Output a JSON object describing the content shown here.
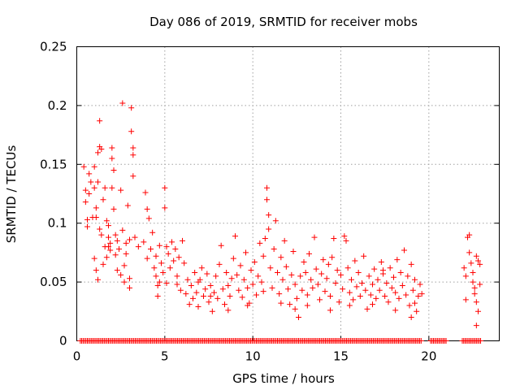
{
  "chart_data": {
    "type": "scatter",
    "title": "Day 086 of 2019, SRMTID for receiver mobs",
    "xlabel": "GPS time / hours",
    "ylabel": "SRMTID / TECUs",
    "xlim": [
      0,
      24
    ],
    "ylim": [
      0,
      0.25
    ],
    "x_ticks": [
      0,
      5,
      10,
      15,
      20
    ],
    "x_tick_labels": [
      "0",
      "5",
      "10",
      "15",
      "20"
    ],
    "y_ticks": [
      0,
      0.05,
      0.1,
      0.15,
      0.2,
      0.25
    ],
    "y_tick_labels": [
      "0",
      "0.05",
      "0.1",
      "0.15",
      "0.2",
      "0.25"
    ],
    "grid": true,
    "marker": "+",
    "color": "#ff0000",
    "series": [
      {
        "name": "SRMTID",
        "points": [
          [
            0.4,
            0.148
          ],
          [
            0.5,
            0.128
          ],
          [
            0.5,
            0.118
          ],
          [
            0.6,
            0.103
          ],
          [
            0.6,
            0.097
          ],
          [
            0.7,
            0.125
          ],
          [
            0.7,
            0.142
          ],
          [
            0.8,
            0.135
          ],
          [
            1.0,
            0.148
          ],
          [
            1.0,
            0.13
          ],
          [
            1.1,
            0.113
          ],
          [
            1.1,
            0.105
          ],
          [
            1.2,
            0.16
          ],
          [
            1.2,
            0.135
          ],
          [
            1.3,
            0.187
          ],
          [
            1.3,
            0.165
          ],
          [
            1.4,
            0.163
          ],
          [
            1.4,
            0.09
          ],
          [
            1.5,
            0.12
          ],
          [
            1.6,
            0.13
          ],
          [
            1.6,
            0.08
          ],
          [
            1.7,
            0.102
          ],
          [
            1.7,
            0.071
          ],
          [
            1.8,
            0.098
          ],
          [
            1.8,
            0.088
          ],
          [
            1.9,
            0.083
          ],
          [
            1.9,
            0.077
          ],
          [
            2.0,
            0.155
          ],
          [
            2.0,
            0.164
          ],
          [
            2.0,
            0.13
          ],
          [
            2.1,
            0.145
          ],
          [
            2.1,
            0.112
          ],
          [
            2.2,
            0.09
          ],
          [
            2.3,
            0.085
          ],
          [
            2.4,
            0.078
          ],
          [
            2.5,
            0.128
          ],
          [
            2.6,
            0.202
          ],
          [
            2.6,
            0.094
          ],
          [
            2.7,
            0.064
          ],
          [
            2.8,
            0.074
          ],
          [
            2.9,
            0.115
          ],
          [
            3.0,
            0.086
          ],
          [
            3.0,
            0.053
          ],
          [
            3.1,
            0.198
          ],
          [
            3.1,
            0.178
          ],
          [
            3.2,
            0.164
          ],
          [
            3.2,
            0.158
          ],
          [
            3.2,
            0.14
          ],
          [
            1.0,
            0.07
          ],
          [
            1.1,
            0.06
          ],
          [
            1.2,
            0.052
          ],
          [
            1.5,
            0.065
          ],
          [
            2.3,
            0.06
          ],
          [
            2.5,
            0.056
          ],
          [
            2.7,
            0.05
          ],
          [
            3.0,
            0.045
          ],
          [
            0.9,
            0.105
          ],
          [
            1.3,
            0.095
          ],
          [
            1.8,
            0.08
          ],
          [
            2.2,
            0.073
          ],
          [
            2.8,
            0.083
          ],
          [
            3.3,
            0.088
          ],
          [
            3.8,
            0.084
          ],
          [
            3.9,
            0.126
          ],
          [
            4.0,
            0.112
          ],
          [
            4.0,
            0.07
          ],
          [
            4.1,
            0.104
          ],
          [
            4.2,
            0.078
          ],
          [
            4.3,
            0.092
          ],
          [
            4.4,
            0.062
          ],
          [
            4.5,
            0.072
          ],
          [
            4.5,
            0.055
          ],
          [
            4.6,
            0.047
          ],
          [
            4.6,
            0.038
          ],
          [
            4.7,
            0.081
          ],
          [
            4.8,
            0.066
          ],
          [
            4.9,
            0.058
          ],
          [
            5.0,
            0.13
          ],
          [
            5.0,
            0.113
          ],
          [
            5.1,
            0.08
          ],
          [
            5.1,
            0.049
          ],
          [
            5.2,
            0.074
          ],
          [
            5.3,
            0.062
          ],
          [
            5.4,
            0.084
          ],
          [
            5.5,
            0.068
          ],
          [
            5.6,
            0.078
          ],
          [
            5.7,
            0.055
          ],
          [
            5.8,
            0.071
          ],
          [
            5.9,
            0.043
          ],
          [
            6.0,
            0.085
          ],
          [
            6.1,
            0.066
          ],
          [
            6.2,
            0.04
          ],
          [
            6.3,
            0.052
          ],
          [
            6.4,
            0.031
          ],
          [
            6.5,
            0.047
          ],
          [
            6.6,
            0.036
          ],
          [
            6.7,
            0.058
          ],
          [
            6.8,
            0.041
          ],
          [
            6.9,
            0.029
          ],
          [
            7.0,
            0.052
          ],
          [
            7.1,
            0.062
          ],
          [
            7.2,
            0.038
          ],
          [
            7.3,
            0.044
          ],
          [
            7.4,
            0.057
          ],
          [
            7.5,
            0.033
          ],
          [
            7.6,
            0.047
          ],
          [
            7.7,
            0.025
          ],
          [
            7.8,
            0.041
          ],
          [
            7.9,
            0.055
          ],
          [
            8.0,
            0.036
          ],
          [
            8.1,
            0.065
          ],
          [
            8.2,
            0.081
          ],
          [
            8.3,
            0.044
          ],
          [
            8.4,
            0.031
          ],
          [
            8.5,
            0.058
          ],
          [
            8.6,
            0.047
          ],
          [
            8.7,
            0.038
          ],
          [
            8.8,
            0.053
          ],
          [
            8.9,
            0.07
          ],
          [
            9.0,
            0.089
          ],
          [
            9.1,
            0.056
          ],
          [
            9.2,
            0.043
          ],
          [
            9.3,
            0.064
          ],
          [
            9.4,
            0.037
          ],
          [
            9.5,
            0.052
          ],
          [
            9.6,
            0.075
          ],
          [
            9.7,
            0.045
          ],
          [
            9.8,
            0.032
          ],
          [
            9.9,
            0.06
          ],
          [
            10.0,
            0.048
          ],
          [
            10.1,
            0.067
          ],
          [
            10.2,
            0.039
          ],
          [
            10.3,
            0.055
          ],
          [
            10.4,
            0.083
          ],
          [
            10.5,
            0.05
          ],
          [
            10.6,
            0.072
          ],
          [
            10.7,
            0.087
          ],
          [
            10.8,
            0.13
          ],
          [
            10.8,
            0.12
          ],
          [
            10.9,
            0.107
          ],
          [
            10.9,
            0.095
          ],
          [
            11.0,
            0.062
          ],
          [
            11.1,
            0.045
          ],
          [
            11.2,
            0.078
          ],
          [
            11.3,
            0.102
          ],
          [
            11.4,
            0.058
          ],
          [
            11.5,
            0.04
          ],
          [
            11.6,
            0.071
          ],
          [
            11.7,
            0.052
          ],
          [
            11.8,
            0.085
          ],
          [
            11.9,
            0.063
          ],
          [
            12.0,
            0.044
          ],
          [
            12.1,
            0.031
          ],
          [
            12.2,
            0.056
          ],
          [
            12.3,
            0.076
          ],
          [
            12.4,
            0.048
          ],
          [
            12.5,
            0.036
          ],
          [
            12.6,
            0.02
          ],
          [
            12.7,
            0.055
          ],
          [
            12.8,
            0.043
          ],
          [
            12.9,
            0.067
          ],
          [
            13.0,
            0.058
          ],
          [
            13.1,
            0.039
          ],
          [
            13.2,
            0.074
          ],
          [
            13.3,
            0.052
          ],
          [
            13.4,
            0.045
          ],
          [
            13.5,
            0.088
          ],
          [
            13.6,
            0.061
          ],
          [
            13.7,
            0.048
          ],
          [
            13.8,
            0.035
          ],
          [
            13.9,
            0.057
          ],
          [
            14.0,
            0.069
          ],
          [
            14.1,
            0.042
          ],
          [
            14.2,
            0.053
          ],
          [
            14.3,
            0.065
          ],
          [
            14.4,
            0.038
          ],
          [
            14.5,
            0.071
          ],
          [
            14.6,
            0.087
          ],
          [
            14.7,
            0.049
          ],
          [
            14.8,
            0.06
          ],
          [
            14.9,
            0.033
          ],
          [
            15.0,
            0.056
          ],
          [
            15.1,
            0.044
          ],
          [
            15.2,
            0.089
          ],
          [
            15.3,
            0.085
          ],
          [
            15.4,
            0.062
          ],
          [
            15.5,
            0.041
          ],
          [
            15.6,
            0.052
          ],
          [
            15.7,
            0.035
          ],
          [
            15.8,
            0.068
          ],
          [
            15.9,
            0.046
          ],
          [
            16.0,
            0.058
          ],
          [
            16.1,
            0.038
          ],
          [
            16.2,
            0.049
          ],
          [
            16.3,
            0.072
          ],
          [
            16.4,
            0.043
          ],
          [
            16.5,
            0.027
          ],
          [
            16.6,
            0.055
          ],
          [
            16.7,
            0.039
          ],
          [
            16.8,
            0.048
          ],
          [
            16.9,
            0.061
          ],
          [
            17.0,
            0.036
          ],
          [
            17.1,
            0.052
          ],
          [
            17.2,
            0.043
          ],
          [
            17.3,
            0.067
          ],
          [
            17.4,
            0.057
          ],
          [
            17.5,
            0.038
          ],
          [
            17.6,
            0.049
          ],
          [
            17.7,
            0.033
          ],
          [
            17.8,
            0.062
          ],
          [
            17.9,
            0.045
          ],
          [
            18.0,
            0.054
          ],
          [
            18.1,
            0.041
          ],
          [
            18.2,
            0.069
          ],
          [
            18.3,
            0.036
          ],
          [
            18.4,
            0.058
          ],
          [
            18.5,
            0.047
          ],
          [
            18.6,
            0.077
          ],
          [
            18.7,
            0.039
          ],
          [
            18.8,
            0.055
          ],
          [
            18.9,
            0.03
          ],
          [
            19.0,
            0.065
          ],
          [
            19.1,
            0.043
          ],
          [
            19.2,
            0.052
          ],
          [
            19.3,
            0.025
          ],
          [
            19.4,
            0.038
          ],
          [
            19.5,
            0.048
          ],
          [
            19.6,
            0.04
          ],
          [
            19.0,
            0.02
          ],
          [
            19.2,
            0.032
          ],
          [
            18.1,
            0.026
          ],
          [
            17.4,
            0.06
          ],
          [
            16.8,
            0.031
          ],
          [
            15.5,
            0.03
          ],
          [
            14.4,
            0.026
          ],
          [
            13.1,
            0.03
          ],
          [
            12.4,
            0.027
          ],
          [
            11.6,
            0.032
          ],
          [
            10.6,
            0.042
          ],
          [
            9.7,
            0.03
          ],
          [
            8.6,
            0.026
          ],
          [
            7.6,
            0.038
          ],
          [
            6.9,
            0.05
          ],
          [
            5.7,
            0.048
          ],
          [
            4.7,
            0.05
          ],
          [
            3.5,
            0.08
          ],
          [
            22.0,
            0.062
          ],
          [
            22.1,
            0.055
          ],
          [
            22.1,
            0.035
          ],
          [
            22.2,
            0.088
          ],
          [
            22.3,
            0.09
          ],
          [
            22.3,
            0.075
          ],
          [
            22.4,
            0.066
          ],
          [
            22.5,
            0.058
          ],
          [
            22.5,
            0.05
          ],
          [
            22.6,
            0.045
          ],
          [
            22.6,
            0.04
          ],
          [
            22.7,
            0.072
          ],
          [
            22.7,
            0.033
          ],
          [
            22.8,
            0.068
          ],
          [
            22.8,
            0.025
          ],
          [
            22.9,
            0.048
          ],
          [
            22.7,
            0.013
          ],
          [
            22.9,
            0.065
          ]
        ]
      }
    ],
    "zero_band": {
      "y": 0,
      "segments": [
        [
          0.2,
          19.6
        ],
        [
          20.1,
          21.0
        ],
        [
          21.9,
          23.0
        ]
      ]
    }
  }
}
